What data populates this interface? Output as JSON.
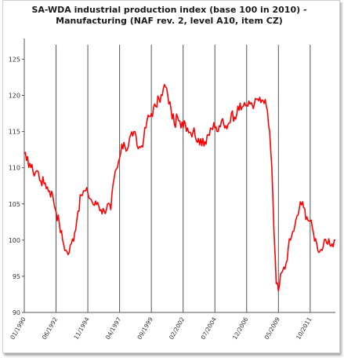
{
  "chart_data": {
    "type": "line",
    "title": "SA-WDA industrial production index (base 100 in 2010) - Manufacturing (NAF rev. 2, level A10, item CZ)",
    "xlabel": "",
    "ylabel": "",
    "ylim": [
      90,
      127
    ],
    "yticks": [
      90,
      95,
      100,
      105,
      110,
      115,
      120,
      125
    ],
    "x_range": [
      "1990-01",
      "2013-09"
    ],
    "xticks": [
      {
        "label": "01/1990",
        "date": "1990-01"
      },
      {
        "label": "06/1992",
        "date": "1992-06"
      },
      {
        "label": "11/1994",
        "date": "1994-11"
      },
      {
        "label": "04/1997",
        "date": "1997-04"
      },
      {
        "label": "09/1999",
        "date": "1999-09"
      },
      {
        "label": "02/2002",
        "date": "2002-02"
      },
      {
        "label": "07/2004",
        "date": "2004-07"
      },
      {
        "label": "12/2006",
        "date": "2006-12"
      },
      {
        "label": "05/2009",
        "date": "2009-05"
      },
      {
        "label": "10/2011",
        "date": "2011-10"
      }
    ],
    "grid": {
      "vertical": true,
      "horizontal": false
    },
    "line_color": "#ff0000",
    "series": [
      {
        "points": [
          [
            "1990-01",
            112.0
          ],
          [
            "1990-03",
            111.0
          ],
          [
            "1990-06",
            110.6
          ],
          [
            "1990-09",
            109.4
          ],
          [
            "1991-01",
            109.6
          ],
          [
            "1991-04",
            108.2
          ],
          [
            "1991-08",
            107.9
          ],
          [
            "1991-12",
            106.8
          ],
          [
            "1992-03",
            106.2
          ],
          [
            "1992-06",
            104.0
          ],
          [
            "1992-09",
            102.3
          ],
          [
            "1992-12",
            100.0
          ],
          [
            "1993-03",
            98.6
          ],
          [
            "1993-05",
            98.0
          ],
          [
            "1993-08",
            99.5
          ],
          [
            "1993-11",
            101.0
          ],
          [
            "1994-02",
            104.0
          ],
          [
            "1994-05",
            106.2
          ],
          [
            "1994-08",
            106.8
          ],
          [
            "1994-11",
            106.5
          ],
          [
            "1995-02",
            105.6
          ],
          [
            "1995-05",
            104.8
          ],
          [
            "1995-08",
            105.2
          ],
          [
            "1995-11",
            104.2
          ],
          [
            "1996-02",
            104.0
          ],
          [
            "1996-05",
            105.0
          ],
          [
            "1996-08",
            104.2
          ],
          [
            "1996-11",
            108.5
          ],
          [
            "1997-02",
            110.0
          ],
          [
            "1997-05",
            112.0
          ],
          [
            "1997-08",
            113.5
          ],
          [
            "1997-11",
            112.5
          ],
          [
            "1998-02",
            114.5
          ],
          [
            "1998-05",
            115.0
          ],
          [
            "1998-08",
            113.0
          ],
          [
            "1998-11",
            112.8
          ],
          [
            "1999-02",
            114.0
          ],
          [
            "1999-05",
            116.5
          ],
          [
            "1999-09",
            117.5
          ],
          [
            "2000-01",
            118.5
          ],
          [
            "2000-04",
            119.5
          ],
          [
            "2000-07",
            120.0
          ],
          [
            "2000-09",
            121.5
          ],
          [
            "2000-12",
            120.0
          ],
          [
            "2001-03",
            118.0
          ],
          [
            "2001-06",
            116.0
          ],
          [
            "2001-09",
            117.0
          ],
          [
            "2001-12",
            115.5
          ],
          [
            "2002-03",
            116.5
          ],
          [
            "2002-06",
            115.5
          ],
          [
            "2002-09",
            114.8
          ],
          [
            "2002-12",
            115.5
          ],
          [
            "2003-03",
            113.5
          ],
          [
            "2003-06",
            114.0
          ],
          [
            "2003-09",
            113.0
          ],
          [
            "2003-12",
            114.5
          ],
          [
            "2004-03",
            115.5
          ],
          [
            "2004-07",
            115.5
          ],
          [
            "2004-10",
            115.0
          ],
          [
            "2005-01",
            116.5
          ],
          [
            "2005-04",
            115.5
          ],
          [
            "2005-07",
            116.0
          ],
          [
            "2005-10",
            117.5
          ],
          [
            "2006-01",
            117.0
          ],
          [
            "2006-04",
            118.5
          ],
          [
            "2006-07",
            118.0
          ],
          [
            "2006-10",
            119.0
          ],
          [
            "2007-01",
            118.5
          ],
          [
            "2007-04",
            119.0
          ],
          [
            "2007-07",
            118.8
          ],
          [
            "2007-10",
            119.5
          ],
          [
            "2008-01",
            119.0
          ],
          [
            "2008-03",
            119.3
          ],
          [
            "2008-06",
            118.5
          ],
          [
            "2008-09",
            115.0
          ],
          [
            "2008-11",
            110.0
          ],
          [
            "2009-01",
            101.0
          ],
          [
            "2009-03",
            94.0
          ],
          [
            "2009-05",
            93.0
          ],
          [
            "2009-08",
            95.5
          ],
          [
            "2009-11",
            96.0
          ],
          [
            "2010-02",
            99.0
          ],
          [
            "2010-05",
            100.5
          ],
          [
            "2010-08",
            102.0
          ],
          [
            "2010-11",
            103.5
          ],
          [
            "2011-01",
            105.3
          ],
          [
            "2011-04",
            104.5
          ],
          [
            "2011-07",
            103.2
          ],
          [
            "2011-10",
            102.6
          ],
          [
            "2012-01",
            101.0
          ],
          [
            "2012-04",
            99.5
          ],
          [
            "2012-07",
            98.5
          ],
          [
            "2012-10",
            99.2
          ],
          [
            "2013-01",
            99.6
          ],
          [
            "2013-04",
            99.3
          ],
          [
            "2013-06",
            99.5
          ],
          [
            "2013-09",
            100.0
          ]
        ]
      }
    ]
  }
}
